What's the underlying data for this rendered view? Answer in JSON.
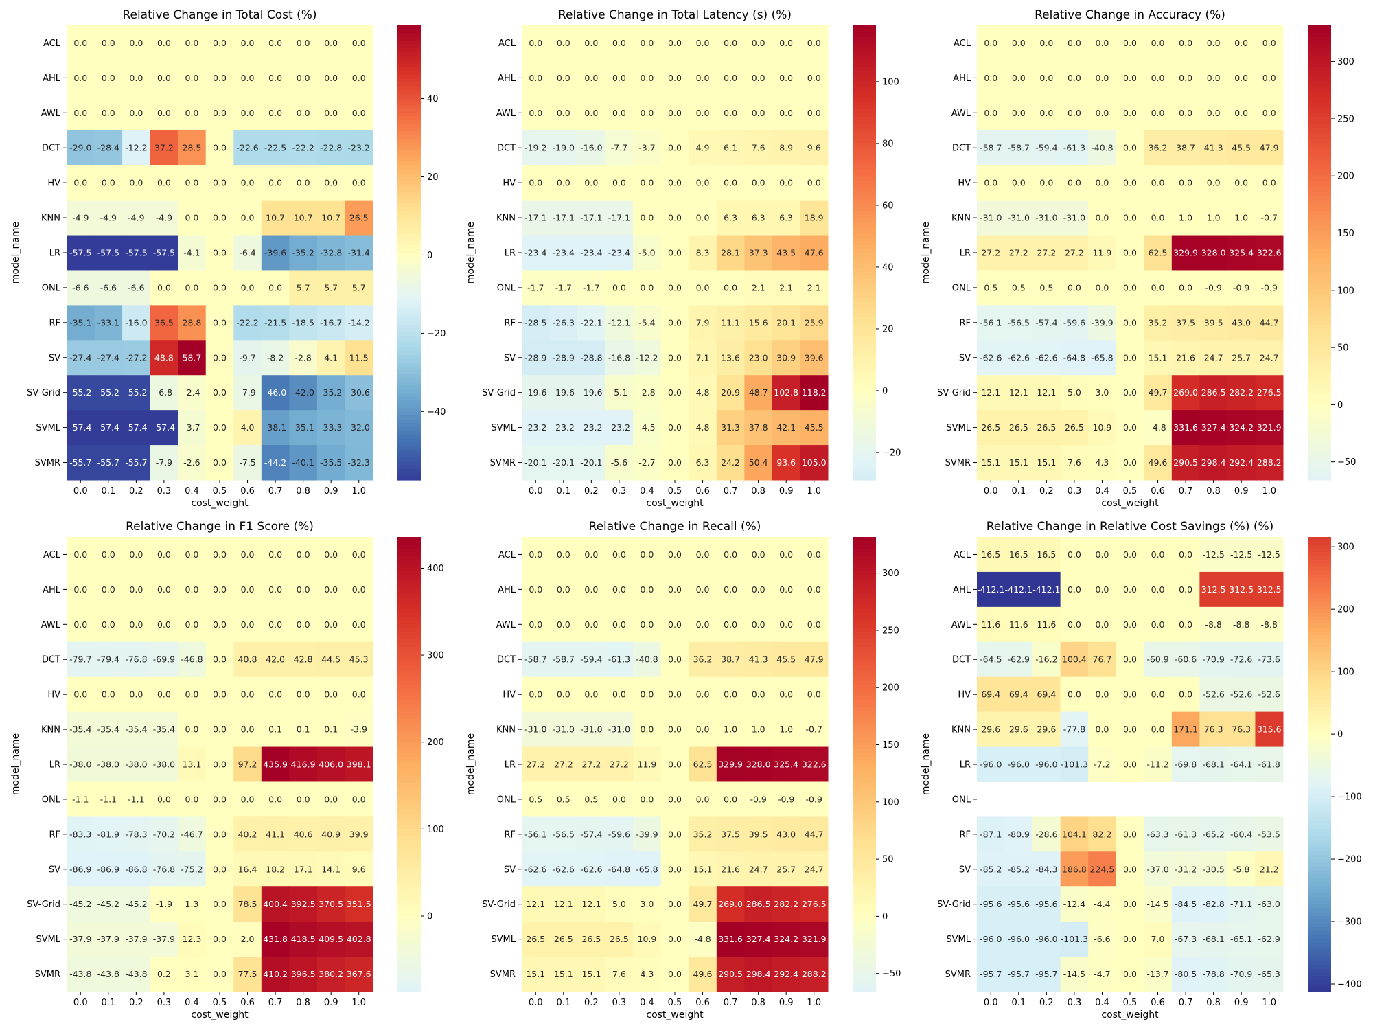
{
  "chart_data": [
    {
      "type": "heatmap",
      "title": "Relative Change in Total Cost (%)",
      "xlabel": "cost_weight",
      "ylabel": "model_name",
      "x": [
        "0.0",
        "0.1",
        "0.2",
        "0.3",
        "0.4",
        "0.5",
        "0.6",
        "0.7",
        "0.8",
        "0.9",
        "1.0"
      ],
      "y": [
        "ACL",
        "AHL",
        "AWL",
        "DCT",
        "HV",
        "KNN",
        "LR",
        "ONL",
        "RF",
        "SV",
        "SV-Grid",
        "SVML",
        "SVMR"
      ],
      "values": [
        [
          0.0,
          0.0,
          0.0,
          0.0,
          0.0,
          0.0,
          0.0,
          0.0,
          0.0,
          0.0,
          0.0
        ],
        [
          0.0,
          0.0,
          0.0,
          0.0,
          0.0,
          0.0,
          0.0,
          0.0,
          0.0,
          0.0,
          0.0
        ],
        [
          0.0,
          0.0,
          0.0,
          0.0,
          0.0,
          0.0,
          0.0,
          0.0,
          0.0,
          0.0,
          0.0
        ],
        [
          -29.0,
          -28.4,
          -12.2,
          37.2,
          28.5,
          0.0,
          -22.6,
          -22.5,
          -22.2,
          -22.8,
          -23.2
        ],
        [
          0.0,
          0.0,
          0.0,
          0.0,
          0.0,
          0.0,
          0.0,
          0.0,
          0.0,
          0.0,
          0.0
        ],
        [
          -4.9,
          -4.9,
          -4.9,
          -4.9,
          0.0,
          0.0,
          0.0,
          10.7,
          10.7,
          10.7,
          26.5
        ],
        [
          -57.5,
          -57.5,
          -57.5,
          -57.5,
          -4.1,
          0.0,
          -6.4,
          -39.6,
          -35.2,
          -32.8,
          -31.4
        ],
        [
          -6.6,
          -6.6,
          -6.6,
          0.0,
          0.0,
          0.0,
          0.0,
          0.0,
          5.7,
          5.7,
          5.7
        ],
        [
          -35.1,
          -33.1,
          -16.0,
          36.5,
          28.8,
          0.0,
          -22.2,
          -21.5,
          -18.5,
          -16.7,
          -14.2
        ],
        [
          -27.4,
          -27.4,
          -27.2,
          48.8,
          58.7,
          0.0,
          -9.7,
          -8.2,
          -2.8,
          4.1,
          11.5
        ],
        [
          -55.2,
          -55.2,
          -55.2,
          -6.8,
          -2.4,
          0.0,
          -7.9,
          -46.0,
          -42.0,
          -35.2,
          -30.6
        ],
        [
          -57.4,
          -57.4,
          -57.4,
          -57.4,
          -3.7,
          0.0,
          4.0,
          -38.1,
          -35.1,
          -33.3,
          -32.0
        ],
        [
          -55.7,
          -55.7,
          -55.7,
          -7.9,
          -2.6,
          0.0,
          -7.5,
          -44.2,
          -40.1,
          -35.5,
          -32.3
        ]
      ],
      "vmin": -57.5,
      "vmax": 58.7,
      "colorbar_ticks": [
        -40,
        -20,
        0,
        20,
        40
      ],
      "colormap": "RdYlBu_r"
    },
    {
      "type": "heatmap",
      "title": "Relative Change in Total Latency (s) (%)",
      "xlabel": "cost_weight",
      "ylabel": "model_name",
      "x": [
        "0.0",
        "0.1",
        "0.2",
        "0.3",
        "0.4",
        "0.5",
        "0.6",
        "0.7",
        "0.8",
        "0.9",
        "1.0"
      ],
      "y": [
        "ACL",
        "AHL",
        "AWL",
        "DCT",
        "HV",
        "KNN",
        "LR",
        "ONL",
        "RF",
        "SV",
        "SV-Grid",
        "SVML",
        "SVMR"
      ],
      "values": [
        [
          0.0,
          0.0,
          0.0,
          0.0,
          0.0,
          0.0,
          0.0,
          0.0,
          0.0,
          0.0,
          0.0
        ],
        [
          0.0,
          0.0,
          0.0,
          0.0,
          0.0,
          0.0,
          0.0,
          0.0,
          0.0,
          0.0,
          0.0
        ],
        [
          0.0,
          0.0,
          0.0,
          0.0,
          0.0,
          0.0,
          0.0,
          0.0,
          0.0,
          0.0,
          0.0
        ],
        [
          -19.2,
          -19.0,
          -16.0,
          -7.7,
          -3.7,
          0.0,
          4.9,
          6.1,
          7.6,
          8.9,
          9.6
        ],
        [
          0.0,
          0.0,
          0.0,
          0.0,
          0.0,
          0.0,
          0.0,
          0.0,
          0.0,
          0.0,
          0.0
        ],
        [
          -17.1,
          -17.1,
          -17.1,
          -17.1,
          0.0,
          0.0,
          0.0,
          6.3,
          6.3,
          6.3,
          18.9
        ],
        [
          -23.4,
          -23.4,
          -23.4,
          -23.4,
          -5.0,
          0.0,
          8.3,
          28.1,
          37.3,
          43.5,
          47.6
        ],
        [
          -1.7,
          -1.7,
          -1.7,
          0.0,
          0.0,
          0.0,
          0.0,
          0.0,
          2.1,
          2.1,
          2.1
        ],
        [
          -28.5,
          -26.3,
          -22.1,
          -12.1,
          -5.4,
          0.0,
          7.9,
          11.1,
          15.6,
          20.1,
          25.9
        ],
        [
          -28.9,
          -28.9,
          -28.8,
          -16.8,
          -12.2,
          0.0,
          7.1,
          13.6,
          23.0,
          30.9,
          39.6
        ],
        [
          -19.6,
          -19.6,
          -19.6,
          -5.1,
          -2.8,
          0.0,
          4.8,
          20.9,
          48.7,
          102.8,
          118.2
        ],
        [
          -23.2,
          -23.2,
          -23.2,
          -23.2,
          -4.5,
          0.0,
          4.8,
          31.3,
          37.8,
          42.1,
          45.5
        ],
        [
          -20.1,
          -20.1,
          -20.1,
          -5.6,
          -2.7,
          0.0,
          6.3,
          24.2,
          50.4,
          93.6,
          105.0
        ]
      ],
      "vmin": -28.9,
      "vmax": 118.2,
      "colorbar_ticks": [
        -20,
        0,
        20,
        40,
        60,
        80,
        100
      ],
      "colormap": "RdYlBu_r"
    },
    {
      "type": "heatmap",
      "title": "Relative Change in Accuracy (%)",
      "xlabel": "cost_weight",
      "ylabel": "model_name",
      "x": [
        "0.0",
        "0.1",
        "0.2",
        "0.3",
        "0.4",
        "0.5",
        "0.6",
        "0.7",
        "0.8",
        "0.9",
        "1.0"
      ],
      "y": [
        "ACL",
        "AHL",
        "AWL",
        "DCT",
        "HV",
        "KNN",
        "LR",
        "ONL",
        "RF",
        "SV",
        "SV-Grid",
        "SVML",
        "SVMR"
      ],
      "values": [
        [
          0.0,
          0.0,
          0.0,
          0.0,
          0.0,
          0.0,
          0.0,
          0.0,
          0.0,
          0.0,
          0.0
        ],
        [
          0.0,
          0.0,
          0.0,
          0.0,
          0.0,
          0.0,
          0.0,
          0.0,
          0.0,
          0.0,
          0.0
        ],
        [
          0.0,
          0.0,
          0.0,
          0.0,
          0.0,
          0.0,
          0.0,
          0.0,
          0.0,
          0.0,
          0.0
        ],
        [
          -58.7,
          -58.7,
          -59.4,
          -61.3,
          -40.8,
          0.0,
          36.2,
          38.7,
          41.3,
          45.5,
          47.9
        ],
        [
          0.0,
          0.0,
          0.0,
          0.0,
          0.0,
          0.0,
          0.0,
          0.0,
          0.0,
          0.0,
          0.0
        ],
        [
          -31.0,
          -31.0,
          -31.0,
          -31.0,
          0.0,
          0.0,
          0.0,
          1.0,
          1.0,
          1.0,
          -0.7
        ],
        [
          27.2,
          27.2,
          27.2,
          27.2,
          11.9,
          0.0,
          62.5,
          329.9,
          328.0,
          325.4,
          322.6
        ],
        [
          0.5,
          0.5,
          0.5,
          0.0,
          0.0,
          0.0,
          0.0,
          0.0,
          -0.9,
          -0.9,
          -0.9
        ],
        [
          -56.1,
          -56.5,
          -57.4,
          -59.6,
          -39.9,
          0.0,
          35.2,
          37.5,
          39.5,
          43.0,
          44.7
        ],
        [
          -62.6,
          -62.6,
          -62.6,
          -64.8,
          -65.8,
          0.0,
          15.1,
          21.6,
          24.7,
          25.7,
          24.7
        ],
        [
          12.1,
          12.1,
          12.1,
          5.0,
          3.0,
          0.0,
          49.7,
          269.0,
          286.5,
          282.2,
          276.5
        ],
        [
          26.5,
          26.5,
          26.5,
          26.5,
          10.9,
          0.0,
          -4.8,
          331.6,
          327.4,
          324.2,
          321.9
        ],
        [
          15.1,
          15.1,
          15.1,
          7.6,
          4.3,
          0.0,
          49.6,
          290.5,
          298.4,
          292.4,
          288.2
        ]
      ],
      "vmin": -65.8,
      "vmax": 331.6,
      "colorbar_ticks": [
        -50,
        0,
        50,
        100,
        150,
        200,
        250,
        300
      ],
      "colormap": "RdYlBu_r"
    },
    {
      "type": "heatmap",
      "title": "Relative Change in F1 Score (%)",
      "xlabel": "cost_weight",
      "ylabel": "model_name",
      "x": [
        "0.0",
        "0.1",
        "0.2",
        "0.3",
        "0.4",
        "0.5",
        "0.6",
        "0.7",
        "0.8",
        "0.9",
        "1.0"
      ],
      "y": [
        "ACL",
        "AHL",
        "AWL",
        "DCT",
        "HV",
        "KNN",
        "LR",
        "ONL",
        "RF",
        "SV",
        "SV-Grid",
        "SVML",
        "SVMR"
      ],
      "values": [
        [
          0.0,
          0.0,
          0.0,
          0.0,
          0.0,
          0.0,
          0.0,
          0.0,
          0.0,
          0.0,
          0.0
        ],
        [
          0.0,
          0.0,
          0.0,
          0.0,
          0.0,
          0.0,
          0.0,
          0.0,
          0.0,
          0.0,
          0.0
        ],
        [
          0.0,
          0.0,
          0.0,
          0.0,
          0.0,
          0.0,
          0.0,
          0.0,
          0.0,
          0.0,
          0.0
        ],
        [
          -79.7,
          -79.4,
          -76.8,
          -69.9,
          -46.8,
          0.0,
          40.8,
          42.0,
          42.8,
          44.5,
          45.3
        ],
        [
          0.0,
          0.0,
          0.0,
          0.0,
          0.0,
          0.0,
          0.0,
          0.0,
          0.0,
          0.0,
          0.0
        ],
        [
          -35.4,
          -35.4,
          -35.4,
          -35.4,
          0.0,
          0.0,
          0.0,
          0.1,
          0.1,
          0.1,
          -3.9
        ],
        [
          -38.0,
          -38.0,
          -38.0,
          -38.0,
          13.1,
          0.0,
          97.2,
          435.9,
          416.9,
          406.0,
          398.1
        ],
        [
          -1.1,
          -1.1,
          -1.1,
          0.0,
          0.0,
          0.0,
          0.0,
          0.0,
          0.0,
          0.0,
          0.0
        ],
        [
          -83.3,
          -81.9,
          -78.3,
          -70.2,
          -46.7,
          0.0,
          40.2,
          41.1,
          40.6,
          40.9,
          39.9
        ],
        [
          -86.9,
          -86.9,
          -86.8,
          -76.8,
          -75.2,
          0.0,
          16.4,
          18.2,
          17.1,
          14.1,
          9.6
        ],
        [
          -45.2,
          -45.2,
          -45.2,
          -1.9,
          1.3,
          0.0,
          78.5,
          400.4,
          392.5,
          370.5,
          351.5
        ],
        [
          -37.9,
          -37.9,
          -37.9,
          -37.9,
          12.3,
          0.0,
          2.0,
          431.8,
          418.5,
          409.5,
          402.8
        ],
        [
          -43.8,
          -43.8,
          -43.8,
          0.2,
          3.1,
          0.0,
          77.5,
          410.2,
          396.5,
          380.2,
          367.6
        ]
      ],
      "vmin": -86.9,
      "vmax": 435.9,
      "colorbar_ticks": [
        0,
        100,
        200,
        300,
        400
      ],
      "colormap": "RdYlBu_r"
    },
    {
      "type": "heatmap",
      "title": "Relative Change in Recall (%)",
      "xlabel": "cost_weight",
      "ylabel": "model_name",
      "x": [
        "0.0",
        "0.1",
        "0.2",
        "0.3",
        "0.4",
        "0.5",
        "0.6",
        "0.7",
        "0.8",
        "0.9",
        "1.0"
      ],
      "y": [
        "ACL",
        "AHL",
        "AWL",
        "DCT",
        "HV",
        "KNN",
        "LR",
        "ONL",
        "RF",
        "SV",
        "SV-Grid",
        "SVML",
        "SVMR"
      ],
      "values": [
        [
          0.0,
          0.0,
          0.0,
          0.0,
          0.0,
          0.0,
          0.0,
          0.0,
          0.0,
          0.0,
          0.0
        ],
        [
          0.0,
          0.0,
          0.0,
          0.0,
          0.0,
          0.0,
          0.0,
          0.0,
          0.0,
          0.0,
          0.0
        ],
        [
          0.0,
          0.0,
          0.0,
          0.0,
          0.0,
          0.0,
          0.0,
          0.0,
          0.0,
          0.0,
          0.0
        ],
        [
          -58.7,
          -58.7,
          -59.4,
          -61.3,
          -40.8,
          0.0,
          36.2,
          38.7,
          41.3,
          45.5,
          47.9
        ],
        [
          0.0,
          0.0,
          0.0,
          0.0,
          0.0,
          0.0,
          0.0,
          0.0,
          0.0,
          0.0,
          0.0
        ],
        [
          -31.0,
          -31.0,
          -31.0,
          -31.0,
          0.0,
          0.0,
          0.0,
          1.0,
          1.0,
          1.0,
          -0.7
        ],
        [
          27.2,
          27.2,
          27.2,
          27.2,
          11.9,
          0.0,
          62.5,
          329.9,
          328.0,
          325.4,
          322.6
        ],
        [
          0.5,
          0.5,
          0.5,
          0.0,
          0.0,
          0.0,
          0.0,
          0.0,
          -0.9,
          -0.9,
          -0.9
        ],
        [
          -56.1,
          -56.5,
          -57.4,
          -59.6,
          -39.9,
          0.0,
          35.2,
          37.5,
          39.5,
          43.0,
          44.7
        ],
        [
          -62.6,
          -62.6,
          -62.6,
          -64.8,
          -65.8,
          0.0,
          15.1,
          21.6,
          24.7,
          25.7,
          24.7
        ],
        [
          12.1,
          12.1,
          12.1,
          5.0,
          3.0,
          0.0,
          49.7,
          269.0,
          286.5,
          282.2,
          276.5
        ],
        [
          26.5,
          26.5,
          26.5,
          26.5,
          10.9,
          0.0,
          -4.8,
          331.6,
          327.4,
          324.2,
          321.9
        ],
        [
          15.1,
          15.1,
          15.1,
          7.6,
          4.3,
          0.0,
          49.6,
          290.5,
          298.4,
          292.4,
          288.2
        ]
      ],
      "vmin": -65.8,
      "vmax": 331.6,
      "colorbar_ticks": [
        -50,
        0,
        50,
        100,
        150,
        200,
        250,
        300
      ],
      "colormap": "RdYlBu_r"
    },
    {
      "type": "heatmap",
      "title": "Relative Change in Relative Cost Savings (%) (%)",
      "xlabel": "cost_weight",
      "ylabel": "model_name",
      "x": [
        "0.0",
        "0.1",
        "0.2",
        "0.3",
        "0.4",
        "0.5",
        "0.6",
        "0.7",
        "0.8",
        "0.9",
        "1.0"
      ],
      "y": [
        "ACL",
        "AHL",
        "AWL",
        "DCT",
        "HV",
        "KNN",
        "LR",
        "ONL",
        "RF",
        "SV",
        "SV-Grid",
        "SVML",
        "SVMR"
      ],
      "values": [
        [
          16.5,
          16.5,
          16.5,
          -0.0,
          -0.0,
          -0.0,
          -0.0,
          -0.0,
          -12.5,
          -12.5,
          -12.5
        ],
        [
          -412.1,
          -412.1,
          -412.1,
          0.0,
          0.0,
          0.0,
          0.0,
          0.0,
          312.5,
          312.5,
          312.5
        ],
        [
          11.6,
          11.6,
          11.6,
          -0.0,
          -0.0,
          -0.0,
          -0.0,
          -0.0,
          -8.8,
          -8.8,
          -8.8
        ],
        [
          -64.5,
          -62.9,
          -16.2,
          100.4,
          76.7,
          -0.0,
          -60.9,
          -60.6,
          -70.9,
          -72.6,
          -73.6
        ],
        [
          69.4,
          69.4,
          69.4,
          -0.0,
          -0.0,
          -0.0,
          -0.0,
          -0.0,
          -52.6,
          -52.6,
          -52.6
        ],
        [
          29.6,
          29.6,
          29.6,
          -77.8,
          -0.0,
          -0.0,
          -0.0,
          171.1,
          76.3,
          76.3,
          315.6
        ],
        [
          -96.0,
          -96.0,
          -96.0,
          -101.3,
          -7.2,
          -0.0,
          -11.2,
          -69.8,
          -68.1,
          -64.1,
          -61.8
        ],
        [
          null,
          null,
          null,
          null,
          null,
          null,
          null,
          null,
          null,
          null,
          null
        ],
        [
          -87.1,
          -80.9,
          -28.6,
          104.1,
          82.2,
          -0.0,
          -63.3,
          -61.3,
          -65.2,
          -60.4,
          -53.5
        ],
        [
          -85.2,
          -85.2,
          -84.3,
          186.8,
          224.5,
          -0.0,
          -37.0,
          -31.2,
          -30.5,
          -5.8,
          21.2
        ],
        [
          -95.6,
          -95.6,
          -95.6,
          -12.4,
          -4.4,
          -0.0,
          -14.5,
          -84.5,
          -82.8,
          -71.1,
          -63.0
        ],
        [
          -96.0,
          -96.0,
          -96.0,
          -101.3,
          -6.6,
          -0.0,
          7.0,
          -67.3,
          -68.1,
          -65.1,
          -62.9
        ],
        [
          -95.7,
          -95.7,
          -95.7,
          -14.5,
          -4.7,
          -0.0,
          -13.7,
          -80.5,
          -78.8,
          -70.9,
          -65.3
        ]
      ],
      "vmin": -412.1,
      "vmax": 315.6,
      "colorbar_ticks": [
        -400,
        -300,
        -200,
        -100,
        0,
        100,
        200,
        300
      ],
      "colormap": "RdYlBu_r"
    }
  ]
}
